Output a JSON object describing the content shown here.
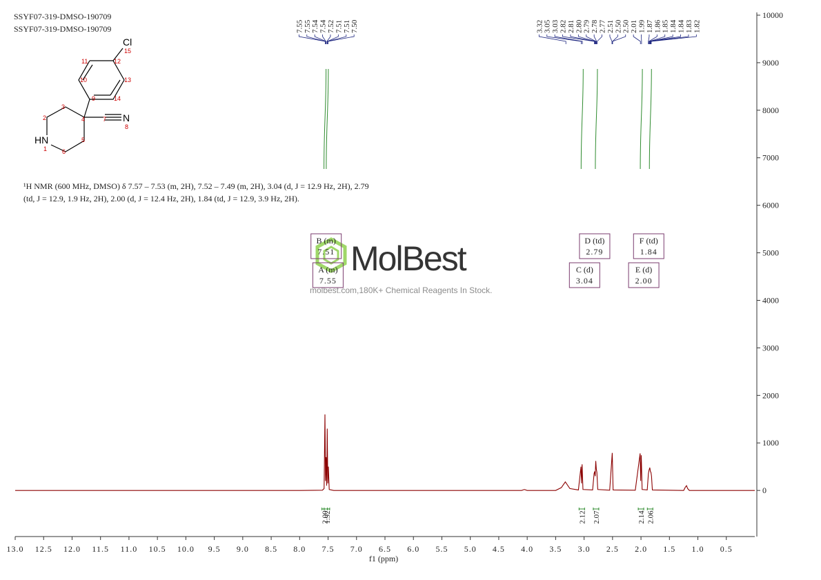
{
  "chart_data": {
    "type": "line",
    "header_lines": [
      "SSYF07-319-DMSO-190709",
      "SSYF07-319-DMSO-190709"
    ],
    "description": [
      "¹H NMR (600 MHz, DMSO) δ 7.57 – 7.53 (m, 2H), 7.52 – 7.49 (m, 2H), 3.04 (d, J = 12.9 Hz, 2H), 2.79",
      "(td, J = 12.9, 1.9 Hz, 2H), 2.00 (d, J = 12.4 Hz, 2H), 1.84 (td, J = 12.9, 3.9 Hz, 2H)."
    ],
    "x_label": "f1 (ppm)",
    "structure": {
      "atoms": [
        "Cl",
        "15",
        "12",
        "11",
        "10",
        "13",
        "9",
        "14",
        "3",
        "4",
        "7",
        "N",
        "8",
        "2",
        "HN",
        "1",
        "5",
        "6"
      ]
    },
    "watermark": {
      "brand": "MolBest",
      "tagline": "molbest.com,180K+ Chemical Reagents In Stock."
    },
    "color": "#8b0000",
    "x": [
      13.0,
      8.0,
      7.6,
      7.57,
      7.555,
      7.545,
      7.535,
      7.525,
      7.515,
      7.505,
      7.495,
      7.48,
      7.4,
      4.1,
      4.05,
      4.0,
      3.5,
      3.4,
      3.33,
      3.25,
      3.1,
      3.055,
      3.045,
      3.035,
      3.02,
      2.85,
      2.825,
      2.815,
      2.805,
      2.795,
      2.785,
      2.775,
      2.76,
      2.55,
      2.505,
      2.49,
      2.1,
      2.015,
      2.005,
      1.995,
      1.98,
      1.89,
      1.87,
      1.86,
      1.845,
      1.835,
      1.825,
      1.815,
      1.8,
      1.25,
      1.22,
      1.2,
      1.18,
      1.15,
      0.0
    ],
    "values": [
      0,
      0,
      5,
      40,
      1600,
      200,
      700,
      100,
      1300,
      150,
      500,
      20,
      0,
      0,
      20,
      0,
      0,
      60,
      180,
      40,
      10,
      500,
      150,
      550,
      20,
      10,
      350,
      400,
      300,
      620,
      450,
      380,
      20,
      5,
      790,
      10,
      5,
      780,
      200,
      740,
      20,
      10,
      350,
      420,
      480,
      400,
      380,
      300,
      10,
      0,
      70,
      100,
      40,
      0,
      0
    ],
    "xlim": [
      13.0,
      0.0
    ],
    "xticks": [
      {
        "value": 13,
        "label": "13.0"
      },
      {
        "value": 12.5,
        "label": "12.5"
      },
      {
        "value": 12,
        "label": "12.0"
      },
      {
        "value": 11.5,
        "label": "11.5"
      },
      {
        "value": 11,
        "label": "11.0"
      },
      {
        "value": 10.5,
        "label": "10.5"
      },
      {
        "value": 10,
        "label": "10.0"
      },
      {
        "value": 9.5,
        "label": "9.5"
      },
      {
        "value": 9,
        "label": "9.0"
      },
      {
        "value": 8.5,
        "label": "8.5"
      },
      {
        "value": 8,
        "label": "8.0"
      },
      {
        "value": 7.5,
        "label": "7.5"
      },
      {
        "value": 7,
        "label": "7.0"
      },
      {
        "value": 6.5,
        "label": "6.5"
      },
      {
        "value": 6,
        "label": "6.0"
      },
      {
        "value": 5.5,
        "label": "5.5"
      },
      {
        "value": 5,
        "label": "5.0"
      },
      {
        "value": 4.5,
        "label": "4.5"
      },
      {
        "value": 4,
        "label": "4.0"
      },
      {
        "value": 3.5,
        "label": "3.5"
      },
      {
        "value": 3,
        "label": "3.0"
      },
      {
        "value": 2.5,
        "label": "2.5"
      },
      {
        "value": 2,
        "label": "2.0"
      },
      {
        "value": 1.5,
        "label": "1.5"
      },
      {
        "value": 1,
        "label": "1.0"
      },
      {
        "value": 0.5,
        "label": "0.5"
      }
    ],
    "ylim": [
      -970,
      10000
    ],
    "yticks": [
      0,
      1000,
      2000,
      3000,
      4000,
      5000,
      6000,
      7000,
      8000,
      9000,
      10000
    ],
    "peak_picks": {
      "values": [
        7.55,
        7.55,
        7.54,
        7.54,
        7.52,
        7.51,
        7.51,
        7.5,
        3.32,
        3.05,
        3.03,
        2.82,
        2.81,
        2.8,
        2.79,
        2.78,
        2.77,
        2.51,
        2.5,
        2.5,
        2.01,
        1.99,
        1.87,
        1.86,
        1.85,
        1.84,
        1.84,
        1.83,
        1.82
      ],
      "value_labels": [
        "7.55",
        "7.55",
        "7.54",
        "7.54",
        "7.52",
        "7.51",
        "7.51",
        "7.50",
        "3.32",
        "3.05",
        "3.03",
        "2.82",
        "2.81",
        "2.80",
        "2.79",
        "2.78",
        "2.77",
        "2.51",
        "2.50",
        "2.50",
        "2.01",
        "1.99",
        "1.87",
        "1.86",
        "1.85",
        "1.84",
        "1.84",
        "1.83",
        "1.82"
      ]
    },
    "integrals": {
      "x": [
        7.56,
        7.52,
        3.04,
        2.79,
        2.0,
        1.84
      ],
      "values": [
        2,
        1.92,
        2.12,
        2.07,
        2.14,
        2.06
      ],
      "value_labels": [
        "2.00",
        "1.92",
        "2.12",
        "2.07",
        "2.14",
        "2.06"
      ],
      "color": "#2e8b2e"
    },
    "multiplets": {
      "labels": [
        "A (m)",
        "B (m)",
        "C (d)",
        "D (td)",
        "E (d)",
        "F (td)"
      ],
      "values": [
        7.55,
        7.51,
        3.04,
        2.79,
        2.0,
        1.84
      ],
      "value_labels": [
        "7.55",
        "7.51",
        "3.04",
        "2.79",
        "2.00",
        "1.84"
      ],
      "color": "#7a3b6e"
    }
  }
}
